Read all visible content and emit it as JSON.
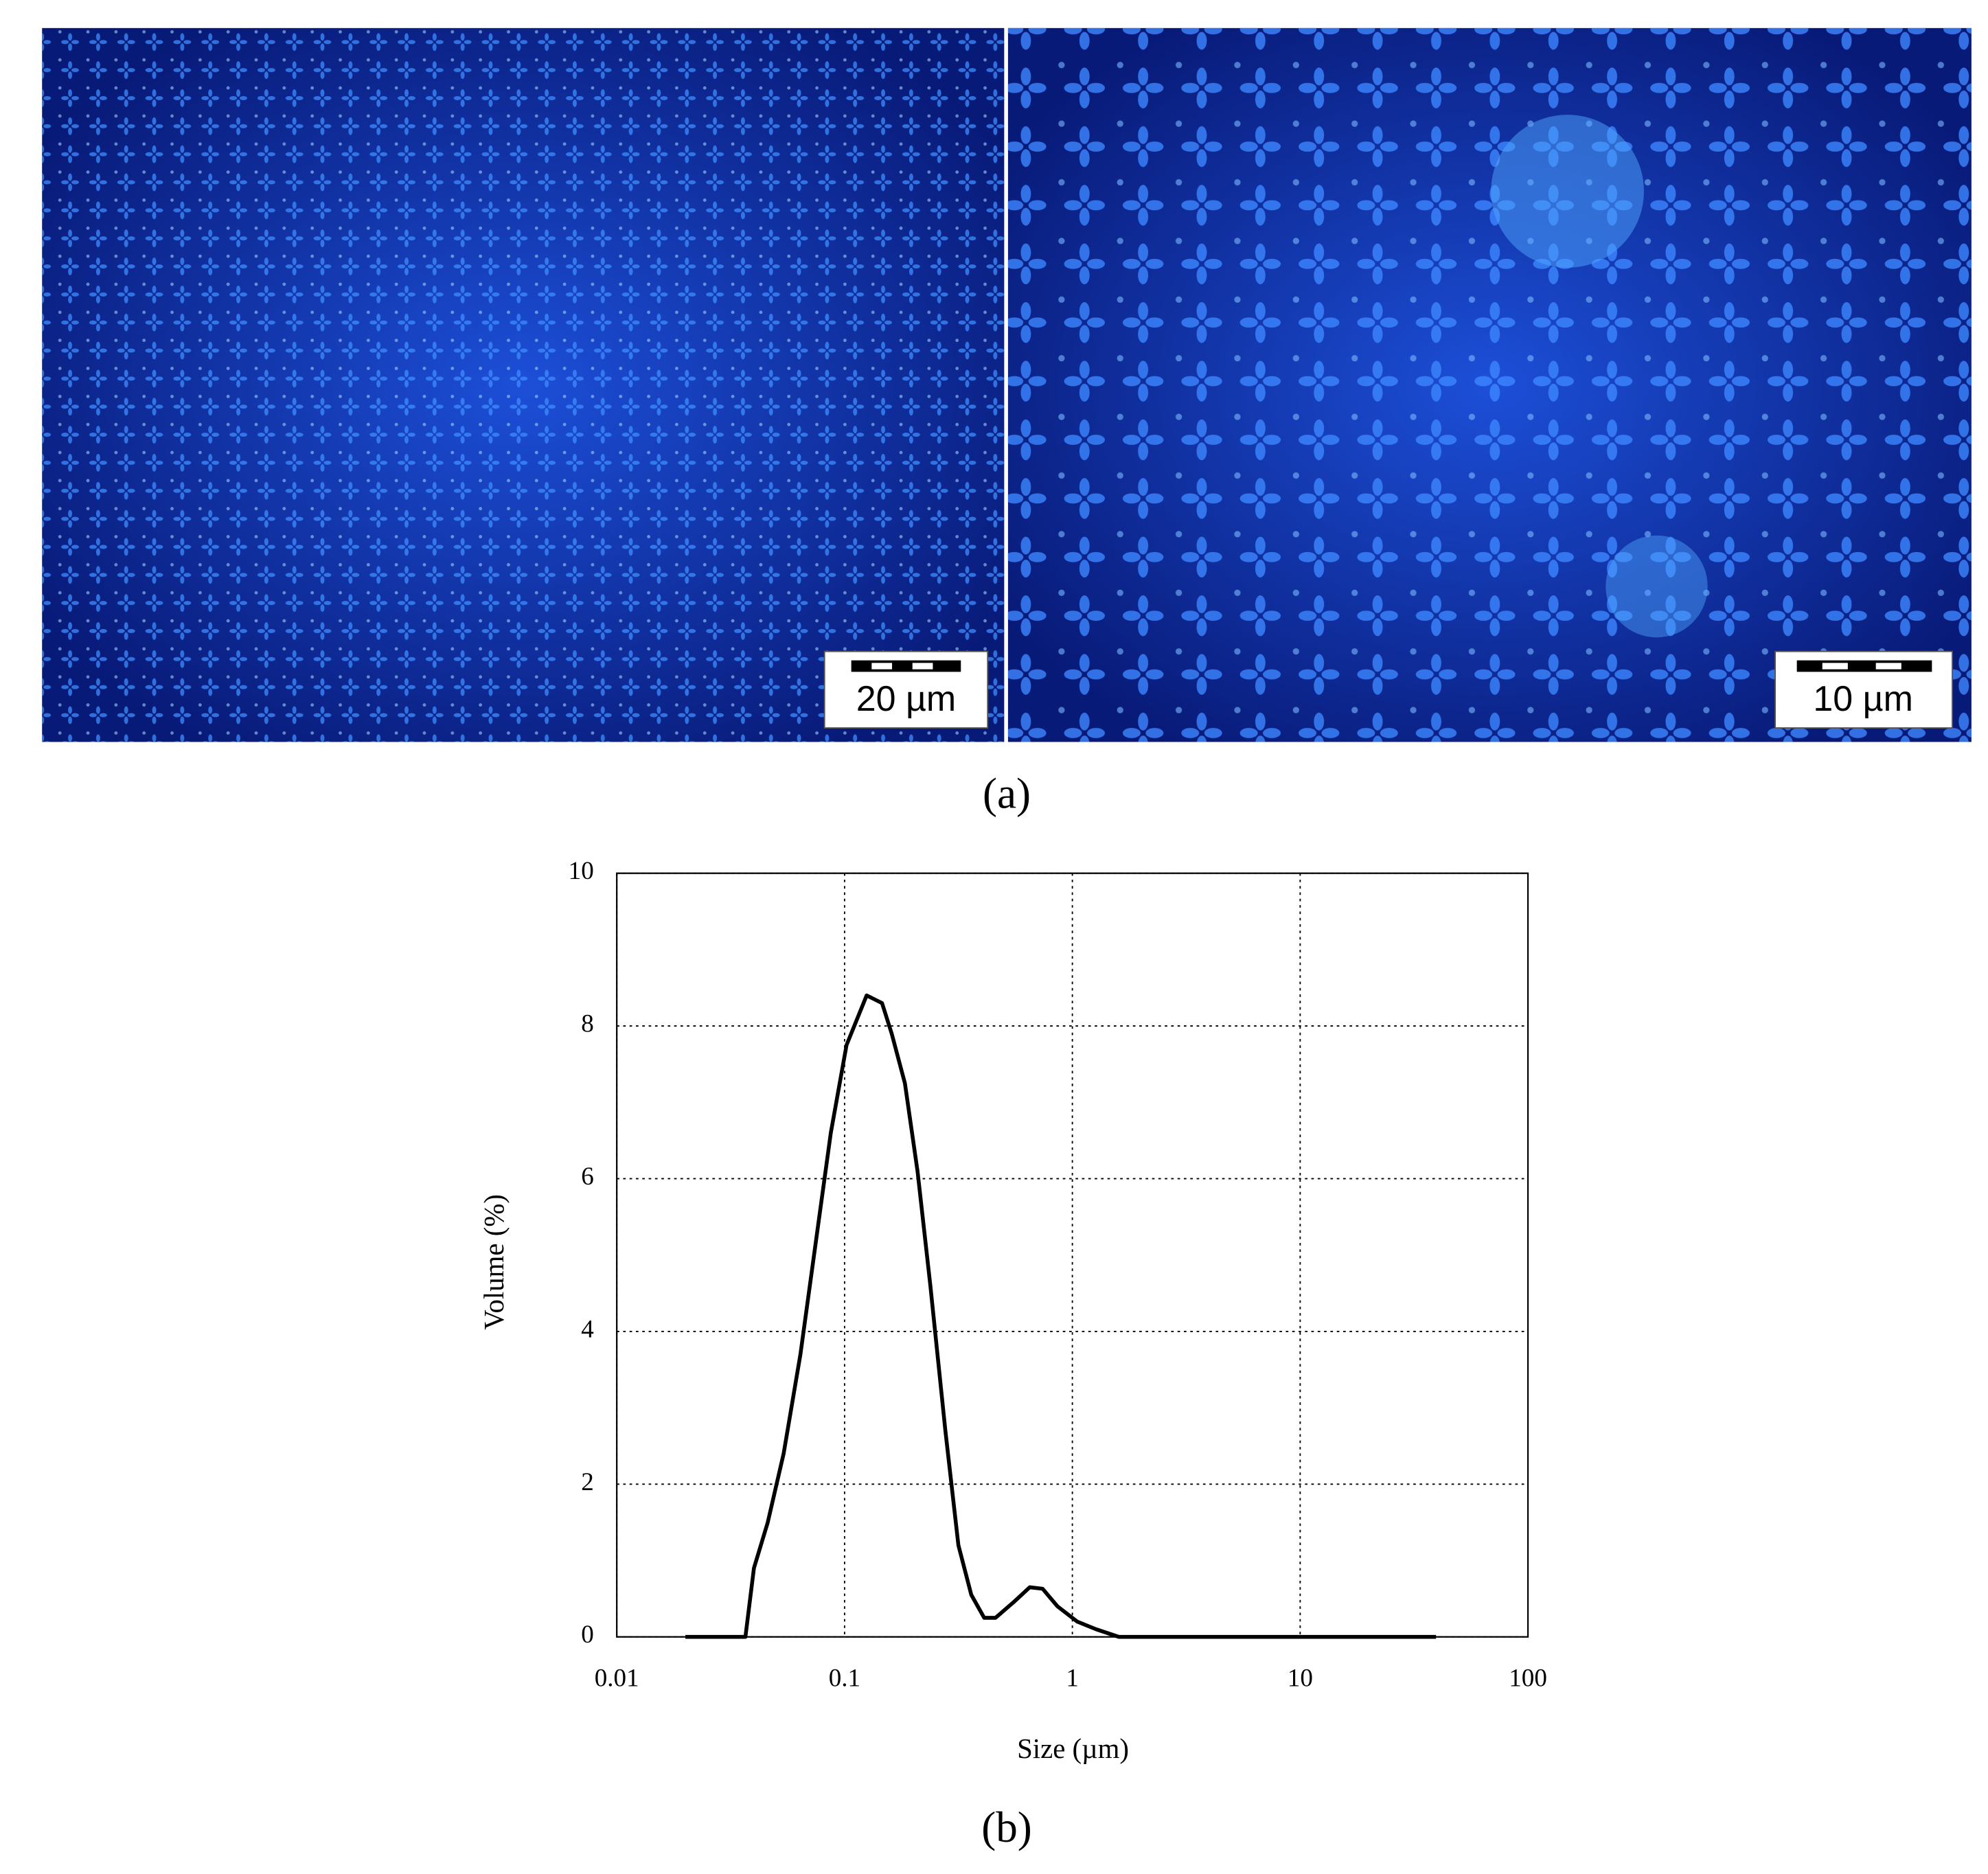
{
  "figure": {
    "panel_a": {
      "label": "(a)",
      "scale_bars": [
        "20 µm",
        "10 µm"
      ]
    },
    "panel_b": {
      "label": "(b)"
    }
  },
  "chart_data": {
    "type": "line",
    "x_label": "Size (µm)",
    "y_label": "Volume (%)",
    "x": [
      0.02,
      0.0367,
      0.04,
      0.046,
      0.054,
      0.064,
      0.075,
      0.087,
      0.102,
      0.125,
      0.146,
      0.161,
      0.184,
      0.209,
      0.238,
      0.277,
      0.316,
      0.36,
      0.41,
      0.46,
      0.55,
      0.65,
      0.74,
      0.86,
      1.05,
      1.27,
      1.6,
      39.5
    ],
    "values": [
      0,
      0,
      0.9,
      1.5,
      2.4,
      3.7,
      5.2,
      6.6,
      7.75,
      8.4,
      8.3,
      7.9,
      7.25,
      6.1,
      4.6,
      2.7,
      1.2,
      0.55,
      0.25,
      0.25,
      0.45,
      0.65,
      0.63,
      0.4,
      0.2,
      0.1,
      0,
      0
    ],
    "color": "#000000",
    "xlim": [
      0.01,
      100
    ],
    "xticks": [
      0.01,
      0.1,
      1,
      10,
      100
    ],
    "xscale": "log",
    "ylim": [
      0,
      10
    ],
    "yticks": [
      0,
      2,
      4,
      6,
      8,
      10
    ],
    "grid": true
  }
}
